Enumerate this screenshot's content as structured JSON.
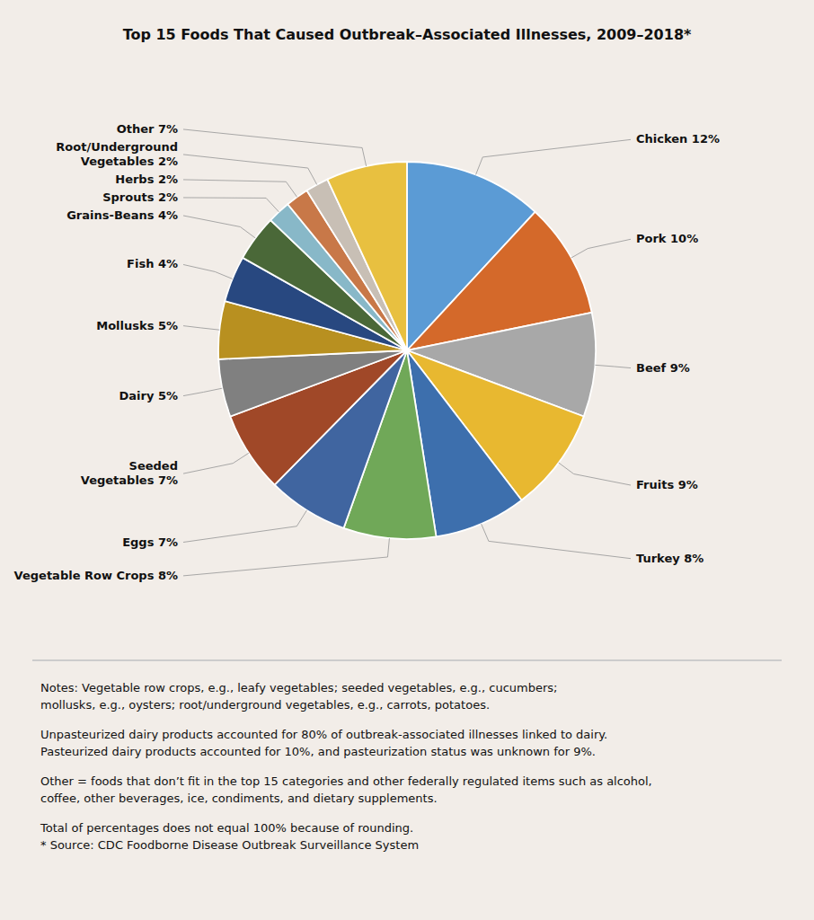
{
  "chart_data": {
    "type": "pie",
    "title": "Top 15 Foods That Caused Outbreak–Associated Illnesses, 2009–2018*",
    "categories": [
      "Chicken 12%",
      "Pork 10%",
      "Beef 9%",
      "Fruits 9%",
      "Turkey 8%",
      "Vegetable Row Crops 8%",
      "Eggs 7%",
      "Seeded\nVegetables 7%",
      "Dairy 5%",
      "Mollusks 5%",
      "Fish 4%",
      "Grains-Beans 4%",
      "Sprouts 2%",
      "Herbs 2%",
      "Root/Underground\nVegetables 2%",
      "Other 7%"
    ],
    "values": [
      12,
      10,
      9,
      9,
      8,
      8,
      7,
      7,
      5,
      5,
      4,
      4,
      2,
      2,
      2,
      7
    ],
    "colors": [
      "#5b9bd5",
      "#d4692a",
      "#a8a8a8",
      "#e8b830",
      "#3d6fad",
      "#70a858",
      "#4065a0",
      "#a04828",
      "#808080",
      "#b89020",
      "#284880",
      "#4a6838",
      "#88b8c8",
      "#c87848",
      "#c8bfb5",
      "#e8c040"
    ],
    "annotations": [
      [
        "Notes: Vegetable row crops, e.g., leafy vegetables; seeded vegetables, e.g., cucumbers;",
        "mollusks, e.g., oysters; root/underground vegetables, e.g., carrots, potatoes."
      ],
      [
        "Unpasteurized dairy products accounted for 80% of outbreak-associated illnesses linked to dairy.",
        "Pasteurized dairy products accounted for 10%, and pasteurization status was unknown for 9%."
      ],
      [
        "Other = foods that don’t fit in the top 15 categories and other federally regulated items such as alcohol,",
        "coffee, other beverages, ice, condiments, and dietary supplements."
      ],
      [
        "Total of percentages does not equal 100% because of rounding.",
        "* Source: CDC Foodborne Disease Outbreak Surveillance System"
      ]
    ]
  }
}
